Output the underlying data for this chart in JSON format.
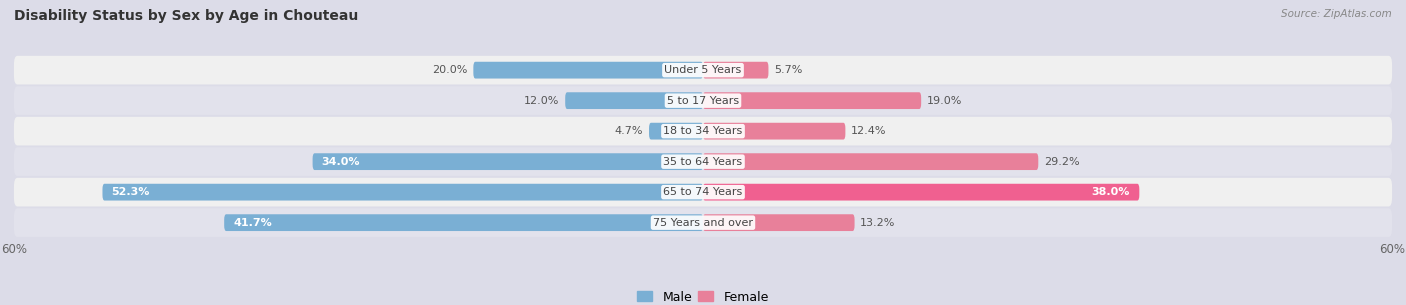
{
  "title": "Disability Status by Sex by Age in Chouteau",
  "source": "Source: ZipAtlas.com",
  "categories": [
    "Under 5 Years",
    "5 to 17 Years",
    "18 to 34 Years",
    "35 to 64 Years",
    "65 to 74 Years",
    "75 Years and over"
  ],
  "male_values": [
    20.0,
    12.0,
    4.7,
    34.0,
    52.3,
    41.7
  ],
  "female_values": [
    5.7,
    19.0,
    12.4,
    29.2,
    38.0,
    13.2
  ],
  "male_color": "#7aafd4",
  "female_color": "#e8809a",
  "female_color_bright": "#f06090",
  "bar_height": 0.55,
  "xlim": 60.0,
  "background_color": "#dcdce8",
  "row_colors": [
    "#f0f0f0",
    "#e2e2ec"
  ],
  "title_fontsize": 10,
  "label_fontsize": 8,
  "value_fontsize": 8,
  "tick_fontsize": 8.5,
  "legend_fontsize": 9
}
